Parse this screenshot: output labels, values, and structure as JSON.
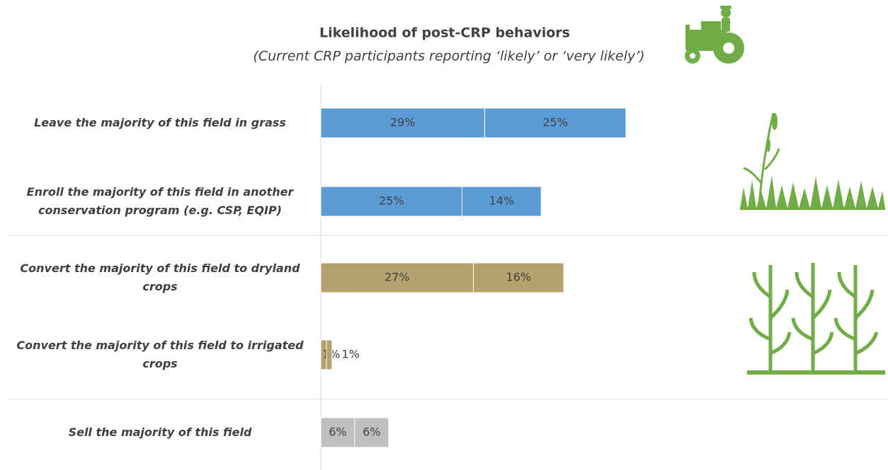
{
  "chart_data": {
    "type": "stacked-bar-horizontal",
    "title": "Likelihood of post-CRP behaviors",
    "subtitle": "(Current CRP participants reporting ‘likely’ or ‘very likely’)",
    "categories": [
      "Leave the majority of this field in grass",
      "Enroll the majority of this field in another conservation program (e.g. CSP, EQIP)",
      "Convert the majority of this field to dryland crops",
      "Convert the majority of this field to irrigated crops",
      "Sell the majority of this field"
    ],
    "colors": [
      "#5b9bd5",
      "#5b9bd5",
      "#b5a26f",
      "#b5a26f",
      "#bfbfbf"
    ],
    "series": [
      {
        "values": [
          29,
          25,
          27,
          1,
          6
        ],
        "value_labels": [
          "29%",
          "25%",
          "27%",
          "1%",
          "6%"
        ]
      },
      {
        "values": [
          25,
          14,
          16,
          1,
          6
        ],
        "value_labels": [
          "25%",
          "14%",
          "16%",
          "1%",
          "6%"
        ]
      }
    ],
    "xlim": [
      0,
      100
    ]
  }
}
